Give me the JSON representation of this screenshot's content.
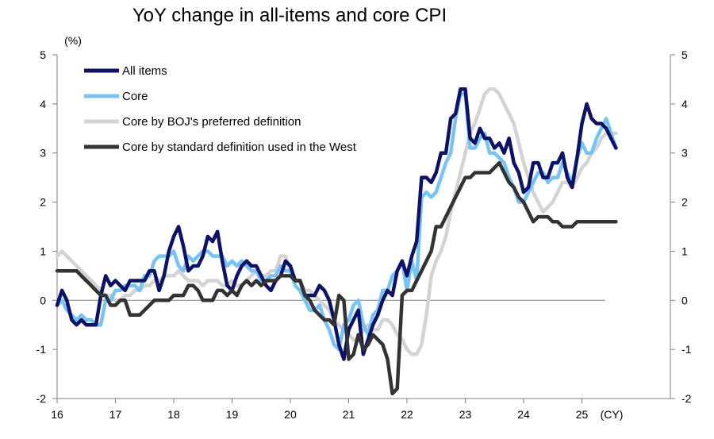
{
  "chart_data": {
    "type": "line",
    "title": "YoY change in all-items and core CPI",
    "ylabel": "(%)",
    "xlabel": "(CY)",
    "ylim": [
      -2,
      5
    ],
    "y_ticks": [
      "5",
      "4",
      "3",
      "2",
      "1",
      "0",
      "-1",
      "-2"
    ],
    "y_tick_values": [
      5,
      4,
      3,
      2,
      1,
      0,
      -1,
      -2
    ],
    "x_ticks": [
      "16",
      "17",
      "18",
      "19",
      "20",
      "21",
      "22",
      "23",
      "24",
      "25"
    ],
    "x_start": 2016,
    "x_step": 0.08333333,
    "series": [
      {
        "name": "All items",
        "color": "#0d1266",
        "values": [
          -0.1,
          0.2,
          0.0,
          -0.4,
          -0.5,
          -0.4,
          -0.5,
          -0.5,
          -0.5,
          0.1,
          0.5,
          0.3,
          0.4,
          0.3,
          0.2,
          0.4,
          0.4,
          0.4,
          0.4,
          0.6,
          0.6,
          0.2,
          0.5,
          1.0,
          1.3,
          1.5,
          1.1,
          0.6,
          0.7,
          0.7,
          0.9,
          1.3,
          1.2,
          1.4,
          0.8,
          0.3,
          0.2,
          0.5,
          0.7,
          0.8,
          0.7,
          0.7,
          0.5,
          0.3,
          0.2,
          0.4,
          0.5,
          0.8,
          0.7,
          0.4,
          0.4,
          0.1,
          0.1,
          0.1,
          0.3,
          0.2,
          0.0,
          -0.4,
          -0.9,
          -1.2,
          -0.6,
          -0.4,
          -0.2,
          -1.1,
          -0.8,
          -0.5,
          -0.3,
          0.0,
          0.2,
          0.1,
          0.6,
          0.8,
          0.5,
          0.9,
          1.2,
          2.5,
          2.5,
          2.4,
          2.6,
          3.0,
          3.0,
          3.7,
          3.8,
          4.3,
          4.3,
          3.3,
          3.2,
          3.5,
          3.3,
          3.3,
          3.1,
          3.2,
          3.0,
          3.3,
          2.8,
          2.6,
          2.2,
          2.3,
          2.8,
          2.8,
          2.5,
          2.5,
          2.8,
          2.8,
          3.0,
          2.5,
          2.3,
          2.9,
          3.6,
          4.0,
          3.7,
          3.6,
          3.6,
          3.5,
          3.3,
          3.1
        ],
        "stroke_width": 4.5
      },
      {
        "name": "Core",
        "color": "#78c3f5",
        "values": [
          -0.1,
          0.0,
          -0.2,
          -0.3,
          -0.4,
          -0.3,
          -0.4,
          -0.4,
          -0.5,
          -0.5,
          0.0,
          0.0,
          0.2,
          0.2,
          0.3,
          0.3,
          0.3,
          0.2,
          0.5,
          0.5,
          0.8,
          0.9,
          0.9,
          0.9,
          1.0,
          0.7,
          0.6,
          0.9,
          0.8,
          0.9,
          1.0,
          1.0,
          0.9,
          0.9,
          0.9,
          0.7,
          0.8,
          0.7,
          0.8,
          0.7,
          0.6,
          0.6,
          0.4,
          0.4,
          0.5,
          0.5,
          0.7,
          0.6,
          0.6,
          0.3,
          0.2,
          0.0,
          -0.2,
          -0.2,
          -0.1,
          -0.4,
          -0.6,
          -0.9,
          -1.0,
          -0.5,
          -0.4,
          -0.1,
          0.0,
          -0.5,
          -0.7,
          -0.3,
          -0.2,
          0.2,
          0.2,
          0.5,
          0.6,
          0.8,
          0.2,
          0.8,
          0.4,
          2.1,
          2.2,
          2.1,
          2.2,
          2.5,
          2.8,
          3.0,
          3.7,
          4.2,
          4.2,
          3.1,
          3.1,
          3.3,
          3.4,
          3.0,
          3.0,
          2.9,
          2.8,
          2.5,
          2.3,
          2.0,
          2.0,
          2.2,
          2.4,
          2.6,
          2.6,
          2.4,
          2.5,
          2.5,
          2.8,
          2.6,
          2.4,
          2.9,
          3.2,
          3.0,
          3.0,
          3.3,
          3.5,
          3.7,
          3.4,
          3.1
        ],
        "stroke_width": 4.5
      },
      {
        "name": "Core by BOJ's preferred definition",
        "color": "#d3d3d3",
        "values": [
          0.9,
          1.0,
          0.9,
          0.8,
          0.7,
          0.6,
          0.5,
          0.4,
          0.3,
          0.2,
          0.1,
          0.1,
          0.0,
          0.0,
          0.1,
          0.1,
          0.2,
          0.2,
          0.3,
          0.3,
          0.4,
          0.4,
          0.5,
          0.5,
          0.5,
          0.6,
          0.5,
          0.4,
          0.4,
          0.4,
          0.3,
          0.4,
          0.4,
          0.4,
          0.3,
          0.3,
          0.4,
          0.3,
          0.3,
          0.4,
          0.5,
          0.6,
          0.5,
          0.5,
          0.6,
          0.6,
          0.9,
          0.9,
          0.6,
          0.4,
          0.4,
          0.2,
          0.2,
          0.1,
          0.0,
          -0.1,
          -0.2,
          -0.4,
          -0.5,
          -0.6,
          -0.7,
          -0.8,
          -0.8,
          -0.6,
          -0.5,
          -0.6,
          -0.6,
          -0.4,
          -0.4,
          -0.5,
          -0.7,
          -0.8,
          -1.0,
          -1.1,
          -1.1,
          -0.9,
          -0.3,
          0.5,
          0.8,
          1.0,
          1.3,
          1.8,
          2.2,
          2.6,
          3.0,
          3.4,
          3.6,
          3.9,
          4.2,
          4.3,
          4.3,
          4.2,
          4.0,
          3.8,
          3.6,
          3.2,
          2.8,
          2.5,
          2.2,
          2.0,
          1.8,
          1.9,
          2.0,
          2.2,
          2.4,
          2.4,
          2.3,
          2.5,
          2.7,
          2.8,
          3.0,
          3.1,
          3.3,
          3.4,
          3.4,
          3.4
        ],
        "stroke_width": 4.5
      },
      {
        "name": "Core by standard definition used in the West",
        "color": "#333333",
        "values": [
          0.6,
          0.6,
          0.6,
          0.6,
          0.6,
          0.5,
          0.4,
          0.3,
          0.2,
          0.1,
          0.1,
          -0.1,
          -0.1,
          0.0,
          0.0,
          -0.3,
          -0.3,
          -0.3,
          -0.2,
          -0.1,
          0.0,
          0.0,
          0.0,
          0.0,
          0.1,
          0.1,
          0.1,
          0.3,
          0.3,
          0.2,
          0.0,
          0.0,
          0.0,
          0.2,
          0.2,
          0.1,
          0.2,
          0.1,
          0.3,
          0.4,
          0.3,
          0.4,
          0.3,
          0.4,
          0.4,
          0.4,
          0.5,
          0.5,
          0.5,
          0.4,
          0.4,
          0.1,
          0.0,
          -0.2,
          -0.3,
          -0.4,
          -0.4,
          -0.5,
          0.1,
          0.0,
          -1.2,
          -1.1,
          -0.7,
          -1.0,
          -0.9,
          -0.7,
          -0.8,
          -0.9,
          -1.2,
          -1.9,
          -1.8,
          0.1,
          0.2,
          0.2,
          0.4,
          0.6,
          0.8,
          1.0,
          1.5,
          1.5,
          1.7,
          1.9,
          2.1,
          2.3,
          2.5,
          2.5,
          2.6,
          2.6,
          2.6,
          2.6,
          2.7,
          2.8,
          2.6,
          2.4,
          2.3,
          2.1,
          2.0,
          1.8,
          1.6,
          1.7,
          1.7,
          1.7,
          1.6,
          1.6,
          1.5,
          1.5,
          1.5,
          1.6,
          1.6,
          1.6,
          1.6,
          1.6,
          1.6,
          1.6,
          1.6,
          1.6
        ],
        "stroke_width": 4.5
      }
    ]
  }
}
